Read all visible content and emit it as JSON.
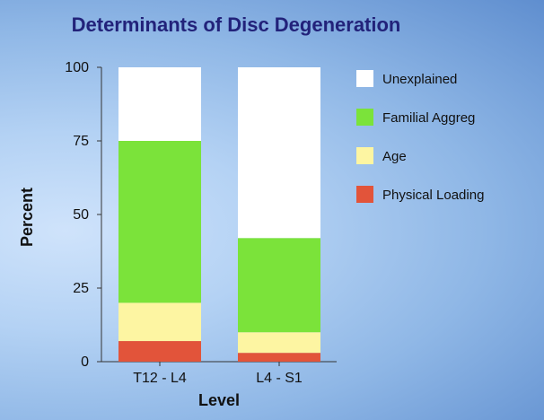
{
  "chart_data": {
    "type": "bar",
    "stacked": true,
    "title": "Determinants of Disc Degeneration",
    "xlabel": "Level",
    "ylabel": "Percent",
    "ylim": [
      0,
      100
    ],
    "yticks": [
      "0",
      "25",
      "50",
      "75",
      "100"
    ],
    "categories": [
      "T12 - L4",
      "L4 - S1"
    ],
    "series": [
      {
        "name": "Physical Loading",
        "color": "#e2543a",
        "values": [
          7,
          3
        ]
      },
      {
        "name": "Age",
        "color": "#fdf5a2",
        "values": [
          13,
          7
        ]
      },
      {
        "name": "Familial Aggreg",
        "color": "#7be33a",
        "values": [
          55,
          32
        ]
      },
      {
        "name": "Unexplained",
        "color": "#ffffff",
        "values": [
          25,
          58
        ]
      }
    ],
    "legend_order": [
      "Unexplained",
      "Familial Aggreg",
      "Age",
      "Physical Loading"
    ],
    "legend_position": "right",
    "grid": false
  }
}
